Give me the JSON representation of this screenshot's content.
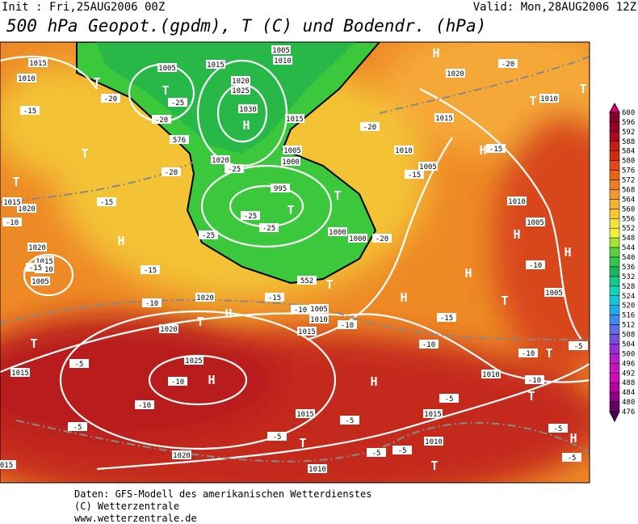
{
  "header": {
    "init": "Init : Fri,25AUG2006 00Z",
    "valid": "Valid: Mon,28AUG2006 12Z",
    "title": "500 hPa Geopot.(gpdm), T (C) und Bodendr. (hPa)"
  },
  "footer": [
    "Daten: GFS-Modell des amerikanischen Wetterdienstes",
    "(C) Wetterzentrale",
    "www.wetterzentrale.de"
  ],
  "colorbar": {
    "labels": [
      "600",
      "596",
      "592",
      "588",
      "584",
      "580",
      "576",
      "572",
      "568",
      "564",
      "560",
      "556",
      "552",
      "548",
      "544",
      "540",
      "536",
      "532",
      "528",
      "524",
      "520",
      "516",
      "512",
      "508",
      "504",
      "500",
      "496",
      "492",
      "488",
      "484",
      "480",
      "476"
    ],
    "colors": [
      "#82002a",
      "#960028",
      "#aa0a1e",
      "#be1e14",
      "#d22d0a",
      "#e14614",
      "#eb6414",
      "#f07d1e",
      "#f5962d",
      "#f5af32",
      "#f5c832",
      "#f5e13c",
      "#f0f03c",
      "#a0e632",
      "#5ad23c",
      "#32c850",
      "#1eb45a",
      "#14c88c",
      "#14d2b4",
      "#14c8dc",
      "#1eaaf0",
      "#3c8cf0",
      "#5a6ee6",
      "#7850dc",
      "#9632d2",
      "#b41ec8",
      "#c814be",
      "#d20ab4",
      "#b400a0",
      "#8c0082",
      "#640064"
    ]
  },
  "map": {
    "centers": [
      "T",
      "T",
      "H",
      "T",
      "T",
      "T",
      "H",
      "T",
      "H",
      "T",
      "H",
      "H",
      "H",
      "H",
      "T",
      "H",
      "T",
      "H",
      "T",
      "T",
      "H",
      "H",
      "T",
      "T",
      "H",
      "T",
      "T",
      "T"
    ],
    "isobars": [
      "1015",
      "1010",
      "1005",
      "1015",
      "1005",
      "1010",
      "1020",
      "1025",
      "1030",
      "1015",
      "1005",
      "1000",
      "1020",
      "995",
      "1000",
      "1000",
      "1020",
      "1015",
      "1020",
      "1015",
      "1010",
      "1005",
      "1020",
      "1020",
      "1015",
      "1005",
      "1010",
      "1025",
      "1015",
      "1015",
      "1015",
      "1020",
      "1010",
      "1010",
      "1010",
      "1005",
      "1005",
      "1010",
      "1005",
      "1010",
      "1015",
      "1010",
      "1020",
      "015"
    ],
    "heights": [
      "576",
      "552"
    ],
    "temps": [
      "-15",
      "-20",
      "-25",
      "-20",
      "-20",
      "-25",
      "-25",
      "-25",
      "-25",
      "-15",
      "-10",
      "-15",
      "-15",
      "-10",
      "-15",
      "-10",
      "-10",
      "-20",
      "-15",
      "-20",
      "-15",
      "-20",
      "-10",
      "-15",
      "-10",
      "-10",
      "-10",
      "-10",
      "-5",
      "-5",
      "-5",
      "-5",
      "-5",
      "-5",
      "-5",
      "-5",
      "-5",
      "-5",
      "-10"
    ]
  }
}
